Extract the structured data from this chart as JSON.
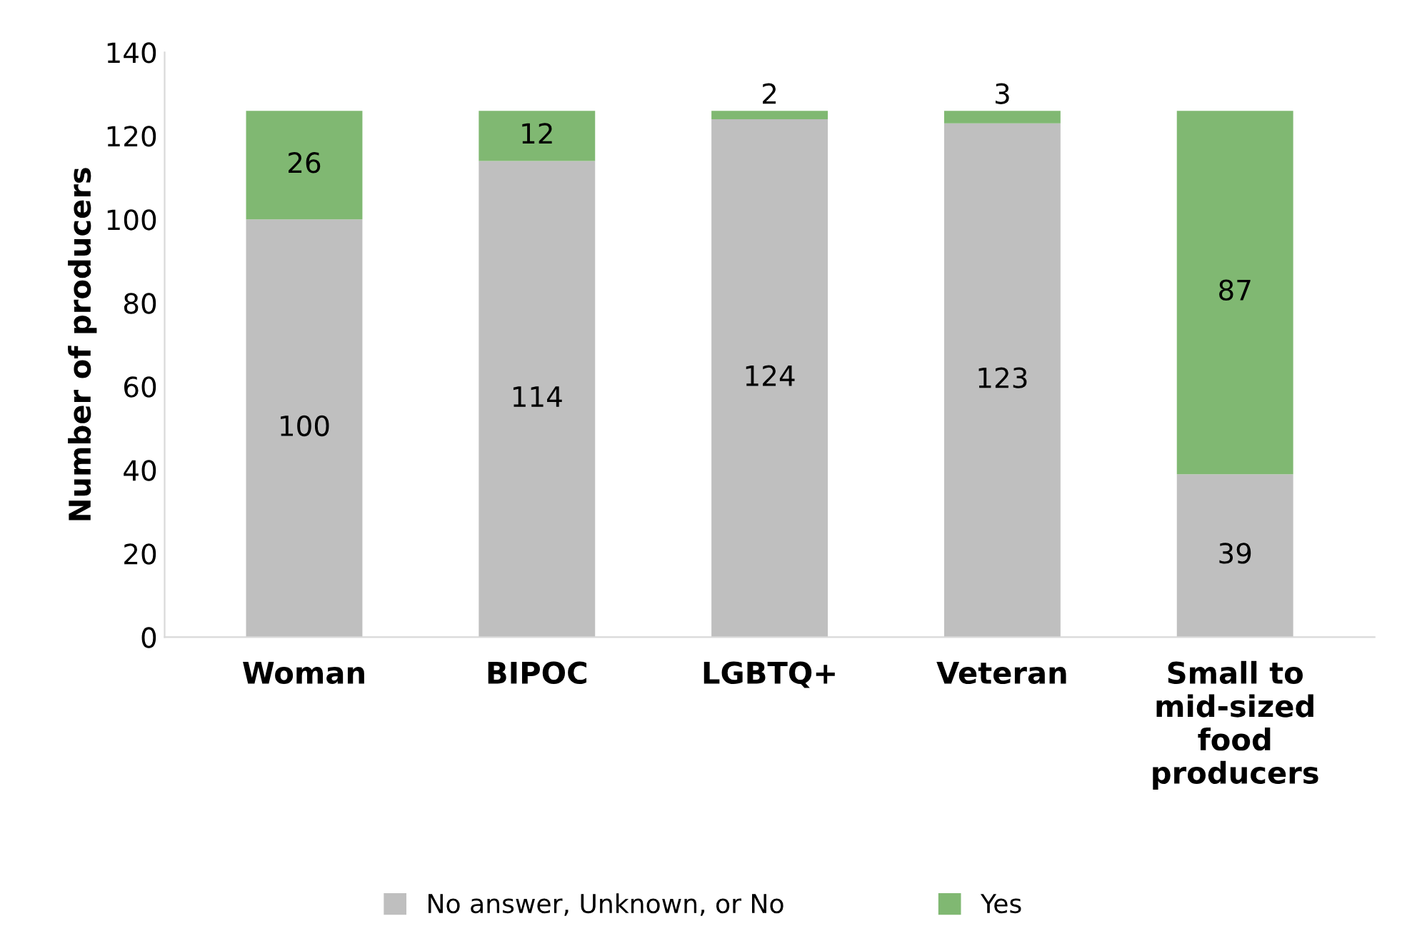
{
  "chart_data": {
    "type": "bar",
    "stacked": true,
    "ylabel": "Number of producers",
    "categories": [
      "Woman",
      "BIPOC",
      "LGBTQ+",
      "Veteran",
      "Small to\nmid-sized\nfood\nproducers"
    ],
    "series": [
      {
        "name": "No answer, Unknown, or No",
        "color": "#bfbfbf",
        "values": [
          100,
          114,
          124,
          123,
          39
        ]
      },
      {
        "name": "Yes",
        "color": "#80b872",
        "values": [
          26,
          12,
          2,
          3,
          87
        ]
      }
    ],
    "ylim": [
      0,
      140
    ],
    "yticks": [
      0,
      20,
      40,
      60,
      80,
      100,
      120,
      140
    ],
    "data_labels": true,
    "legend": "bottom",
    "grid": false
  }
}
